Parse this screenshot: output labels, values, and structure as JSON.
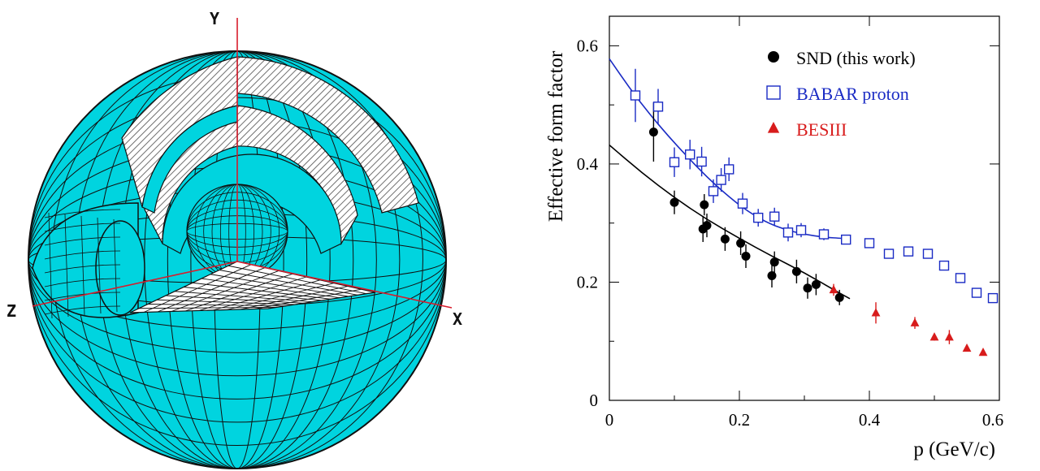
{
  "detector": {
    "axis_labels": {
      "y": "Y",
      "z": "Z",
      "x": "X"
    },
    "colors": {
      "shell": "#00d4df",
      "edge": "#101010",
      "hatch": "#6e6e6e",
      "axis": "#d81c2c"
    }
  },
  "chart_data": {
    "type": "scatter",
    "xlabel": "p (GeV/c)",
    "ylabel": "Effective form factor",
    "xlim": [
      0,
      0.6
    ],
    "ylim": [
      0,
      0.65
    ],
    "x_ticks": [
      {
        "value": 0,
        "label": "0"
      },
      {
        "value": 0.2,
        "label": "0.2"
      },
      {
        "value": 0.4,
        "label": "0.4"
      },
      {
        "value": 0.6,
        "label": "0.6"
      }
    ],
    "y_ticks": [
      {
        "value": 0,
        "label": "0"
      },
      {
        "value": 0.2,
        "label": "0.2"
      },
      {
        "value": 0.4,
        "label": "0.4"
      },
      {
        "value": 0.6,
        "label": "0.6"
      }
    ],
    "legend_position": "top-right",
    "series": [
      {
        "name": "SND (this work)",
        "marker": "circle-filled",
        "color": "#000000",
        "points": [
          {
            "x": 0.068,
            "y": 0.454,
            "err": 0.05
          },
          {
            "x": 0.1,
            "y": 0.335,
            "err": 0.02
          },
          {
            "x": 0.144,
            "y": 0.29,
            "err": 0.022
          },
          {
            "x": 0.146,
            "y": 0.331,
            "err": 0.018
          },
          {
            "x": 0.15,
            "y": 0.296,
            "err": 0.02
          },
          {
            "x": 0.178,
            "y": 0.273,
            "err": 0.02
          },
          {
            "x": 0.202,
            "y": 0.266,
            "err": 0.02
          },
          {
            "x": 0.21,
            "y": 0.244,
            "err": 0.02
          },
          {
            "x": 0.25,
            "y": 0.211,
            "err": 0.02
          },
          {
            "x": 0.254,
            "y": 0.234,
            "err": 0.018
          },
          {
            "x": 0.288,
            "y": 0.218,
            "err": 0.02
          },
          {
            "x": 0.305,
            "y": 0.19,
            "err": 0.018
          },
          {
            "x": 0.318,
            "y": 0.196,
            "err": 0.018
          },
          {
            "x": 0.354,
            "y": 0.174,
            "err": 0.013
          }
        ]
      },
      {
        "name": "BABAR proton",
        "marker": "square-open",
        "color": "#1a2bc4",
        "points": [
          {
            "x": 0.04,
            "y": 0.516,
            "err": 0.045
          },
          {
            "x": 0.075,
            "y": 0.497,
            "err": 0.03
          },
          {
            "x": 0.1,
            "y": 0.403,
            "err": 0.025
          },
          {
            "x": 0.124,
            "y": 0.416,
            "err": 0.025
          },
          {
            "x": 0.142,
            "y": 0.404,
            "err": 0.025
          },
          {
            "x": 0.16,
            "y": 0.354,
            "err": 0.02
          },
          {
            "x": 0.172,
            "y": 0.373,
            "err": 0.02
          },
          {
            "x": 0.184,
            "y": 0.391,
            "err": 0.02
          },
          {
            "x": 0.205,
            "y": 0.333,
            "err": 0.018
          },
          {
            "x": 0.229,
            "y": 0.309,
            "err": 0.015
          },
          {
            "x": 0.254,
            "y": 0.311,
            "err": 0.015
          },
          {
            "x": 0.275,
            "y": 0.284,
            "err": 0.015
          },
          {
            "x": 0.295,
            "y": 0.288,
            "err": 0.012
          },
          {
            "x": 0.33,
            "y": 0.281,
            "err": 0.01
          },
          {
            "x": 0.364,
            "y": 0.272,
            "err": 0.008
          },
          {
            "x": 0.4,
            "y": 0.266,
            "err": 0.006
          },
          {
            "x": 0.43,
            "y": 0.248,
            "err": 0.006
          },
          {
            "x": 0.46,
            "y": 0.252,
            "err": 0.006
          },
          {
            "x": 0.49,
            "y": 0.248,
            "err": 0.006
          },
          {
            "x": 0.515,
            "y": 0.228,
            "err": 0.006
          },
          {
            "x": 0.54,
            "y": 0.207,
            "err": 0.006
          },
          {
            "x": 0.565,
            "y": 0.182,
            "err": 0.006
          },
          {
            "x": 0.59,
            "y": 0.173,
            "err": 0.006
          }
        ]
      },
      {
        "name": "BESIII",
        "marker": "triangle-filled",
        "color": "#d81c1c",
        "points": [
          {
            "x": 0.345,
            "y": 0.187,
            "err": 0.01
          },
          {
            "x": 0.41,
            "y": 0.148,
            "err": 0.018
          },
          {
            "x": 0.47,
            "y": 0.131,
            "err": 0.01
          },
          {
            "x": 0.5,
            "y": 0.107,
            "err": 0.006
          },
          {
            "x": 0.523,
            "y": 0.107,
            "err": 0.012
          },
          {
            "x": 0.55,
            "y": 0.088,
            "err": 0.005
          },
          {
            "x": 0.575,
            "y": 0.081,
            "err": 0.004
          }
        ]
      }
    ],
    "fits": [
      {
        "color": "#000000",
        "points": [
          [
            0,
            0.432
          ],
          [
            0.05,
            0.385
          ],
          [
            0.1,
            0.343
          ],
          [
            0.15,
            0.306
          ],
          [
            0.2,
            0.274
          ],
          [
            0.25,
            0.244
          ],
          [
            0.3,
            0.216
          ],
          [
            0.35,
            0.184
          ],
          [
            0.37,
            0.172
          ]
        ]
      },
      {
        "color": "#1a2bc4",
        "points": [
          [
            0,
            0.578
          ],
          [
            0.03,
            0.53
          ],
          [
            0.06,
            0.487
          ],
          [
            0.09,
            0.448
          ],
          [
            0.12,
            0.412
          ],
          [
            0.15,
            0.378
          ],
          [
            0.18,
            0.348
          ],
          [
            0.21,
            0.322
          ],
          [
            0.24,
            0.302
          ],
          [
            0.27,
            0.289
          ],
          [
            0.3,
            0.281
          ],
          [
            0.33,
            0.276
          ],
          [
            0.36,
            0.274
          ],
          [
            0.37,
            0.273
          ]
        ]
      }
    ]
  }
}
